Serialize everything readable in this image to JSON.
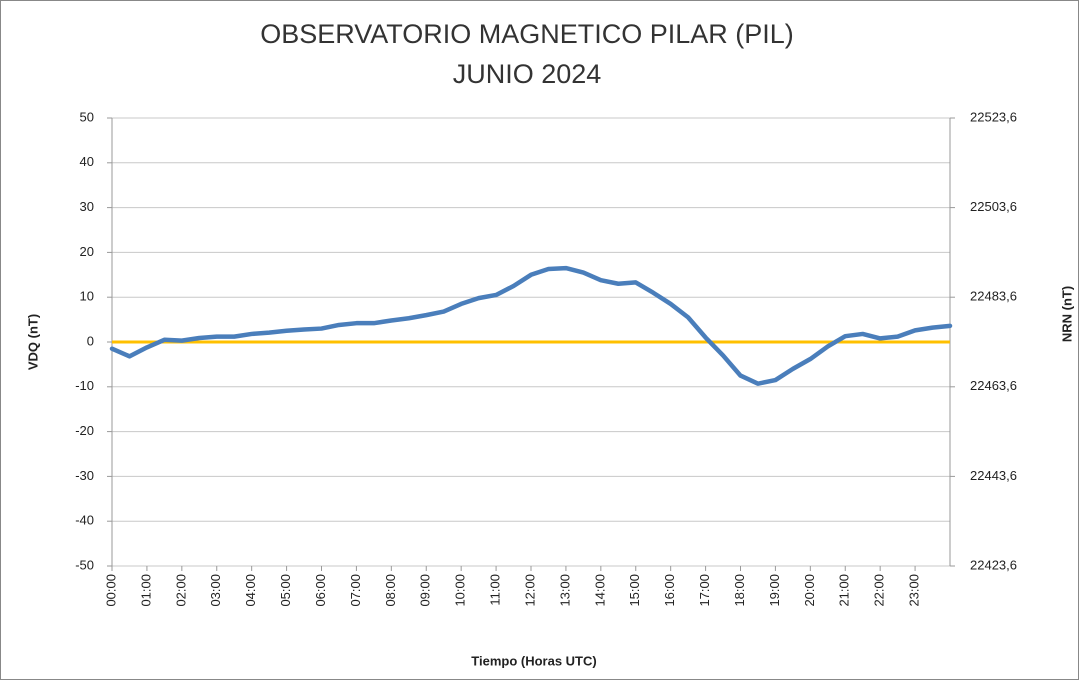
{
  "chart_data": {
    "type": "line",
    "title": "OBSERVATORIO MAGNETICO PILAR (PIL)",
    "subtitle": "JUNIO 2024",
    "x_label": "Tiempo (Horas UTC)",
    "y_label": "VDQ (nT)",
    "y2_label": "NRN (nT)",
    "x": [
      0,
      0.5,
      1,
      1.5,
      2,
      2.5,
      3,
      3.5,
      4,
      4.5,
      5,
      5.5,
      6,
      6.5,
      7,
      7.5,
      8,
      8.5,
      9,
      9.5,
      10,
      10.5,
      11,
      11.5,
      12,
      12.5,
      13,
      13.5,
      14,
      14.5,
      15,
      15.5,
      16,
      16.5,
      17,
      17.5,
      18,
      18.5,
      19,
      19.5,
      20,
      20.5,
      21,
      21.5,
      22,
      22.5,
      23,
      23.5,
      24
    ],
    "series": [
      {
        "color": "#4a7ebb",
        "values": [
          -1.5,
          -3.2,
          -1.2,
          0.5,
          0.3,
          0.9,
          1.2,
          1.2,
          1.8,
          2.1,
          2.5,
          2.8,
          3.0,
          3.8,
          4.2,
          4.2,
          4.8,
          5.3,
          6.0,
          6.8,
          8.5,
          9.8,
          10.5,
          12.5,
          15.0,
          16.3,
          16.5,
          15.5,
          13.8,
          13.0,
          13.3,
          11.0,
          8.5,
          5.5,
          1.0,
          -3.0,
          -7.5,
          -9.3,
          -8.5,
          -6.0,
          -3.8,
          -1.0,
          1.3,
          1.8,
          0.8,
          1.2,
          2.6,
          3.2,
          3.6
        ]
      }
    ],
    "reference_line": {
      "value": 0,
      "color": "#ffc000"
    },
    "xlim": [
      0,
      24
    ],
    "xticks": [
      {
        "value": 0,
        "label": "00:00"
      },
      {
        "value": 1,
        "label": "01:00"
      },
      {
        "value": 2,
        "label": "02:00"
      },
      {
        "value": 3,
        "label": "03:00"
      },
      {
        "value": 4,
        "label": "04:00"
      },
      {
        "value": 5,
        "label": "05:00"
      },
      {
        "value": 6,
        "label": "06:00"
      },
      {
        "value": 7,
        "label": "07:00"
      },
      {
        "value": 8,
        "label": "08:00"
      },
      {
        "value": 9,
        "label": "09:00"
      },
      {
        "value": 10,
        "label": "10:00"
      },
      {
        "value": 11,
        "label": "11:00"
      },
      {
        "value": 12,
        "label": "12:00"
      },
      {
        "value": 13,
        "label": "13:00"
      },
      {
        "value": 14,
        "label": "14:00"
      },
      {
        "value": 15,
        "label": "15:00"
      },
      {
        "value": 16,
        "label": "16:00"
      },
      {
        "value": 17,
        "label": "17:00"
      },
      {
        "value": 18,
        "label": "18:00"
      },
      {
        "value": 19,
        "label": "19:00"
      },
      {
        "value": 20,
        "label": "20:00"
      },
      {
        "value": 21,
        "label": "21:00"
      },
      {
        "value": 22,
        "label": "22:00"
      },
      {
        "value": 23,
        "label": "23:00"
      }
    ],
    "ylim": [
      -50,
      50
    ],
    "yticks": [
      -50,
      -40,
      -30,
      -20,
      -10,
      0,
      10,
      20,
      30,
      40,
      50
    ],
    "y2lim": [
      22423.6,
      22523.6
    ],
    "y2ticks": [
      {
        "value": 22423.6,
        "label": "22423,6"
      },
      {
        "value": 22443.6,
        "label": "22443,6"
      },
      {
        "value": 22463.6,
        "label": "22463,6"
      },
      {
        "value": 22483.6,
        "label": "22483,6"
      },
      {
        "value": 22503.6,
        "label": "22503,6"
      },
      {
        "value": 22523.6,
        "label": "22523,6"
      }
    ],
    "grid": true
  }
}
